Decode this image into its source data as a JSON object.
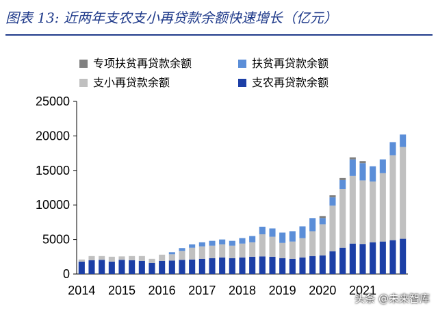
{
  "header": {
    "figure_label": "图表 13:",
    "title": "近两年支农支小再贷款余额快速增长（亿元）"
  },
  "watermark": "头条 @未来智库",
  "colors": {
    "title": "#1f3a8a",
    "special": "#808080",
    "poverty": "#5b8ed8",
    "small": "#c0c0c0",
    "agri": "#1c3fa6",
    "axis": "#000000"
  },
  "chart_data": {
    "type": "bar",
    "stacked": true,
    "title": "近两年支农支小再贷款余额快速增长（亿元）",
    "ylim": [
      0,
      25000
    ],
    "y_ticks": [
      0,
      5000,
      10000,
      15000,
      20000,
      25000
    ],
    "x_tick_labels": [
      "2014",
      "2015",
      "2016",
      "2017",
      "2018",
      "2019",
      "2020",
      "2021"
    ],
    "x_tick_index": [
      0,
      4,
      8,
      12,
      16,
      20,
      24,
      28
    ],
    "legend_position": "top",
    "series": [
      {
        "name": "支农再贷款余额",
        "color_key": "agri",
        "values": [
          1800,
          2000,
          2050,
          1800,
          2050,
          2000,
          1900,
          1600,
          1900,
          1950,
          2050,
          2100,
          2200,
          2300,
          2400,
          2300,
          2400,
          2500,
          2550,
          2500,
          2300,
          2200,
          2400,
          2600,
          2700,
          3300,
          3800,
          4400,
          4350,
          4600,
          4700,
          4900,
          5100
        ]
      },
      {
        "name": "支小再贷款余额",
        "color_key": "small",
        "values": [
          300,
          600,
          550,
          700,
          500,
          600,
          700,
          600,
          900,
          900,
          1300,
          1700,
          1800,
          1800,
          1900,
          1800,
          2000,
          2100,
          3200,
          2900,
          2200,
          2500,
          2800,
          3600,
          4500,
          6600,
          8500,
          9800,
          9200,
          8800,
          9900,
          12300,
          13300
        ]
      },
      {
        "name": "扶贫再贷款余额",
        "color_key": "poverty",
        "values": [
          0,
          0,
          0,
          0,
          0,
          0,
          0,
          0,
          0,
          300,
          400,
          500,
          600,
          700,
          700,
          700,
          800,
          900,
          1100,
          1200,
          1500,
          1500,
          1700,
          1900,
          900,
          1200,
          1300,
          2400,
          2500,
          2200,
          2000,
          1900,
          1800
        ]
      },
      {
        "name": "专项扶贫再贷款余额",
        "color_key": "special",
        "values": [
          0,
          0,
          0,
          0,
          0,
          0,
          0,
          0,
          0,
          0,
          0,
          0,
          0,
          0,
          0,
          0,
          0,
          0,
          0,
          0,
          0,
          0,
          0,
          0,
          300,
          300,
          300,
          300,
          300,
          0,
          0,
          0,
          0
        ]
      }
    ],
    "legend": [
      {
        "label": "专项扶贫再贷款余额",
        "color_key": "special"
      },
      {
        "label": "扶贫再贷款余额",
        "color_key": "poverty"
      },
      {
        "label": "支小再贷款余额",
        "color_key": "small"
      },
      {
        "label": "支农再贷款余额",
        "color_key": "agri"
      }
    ]
  }
}
